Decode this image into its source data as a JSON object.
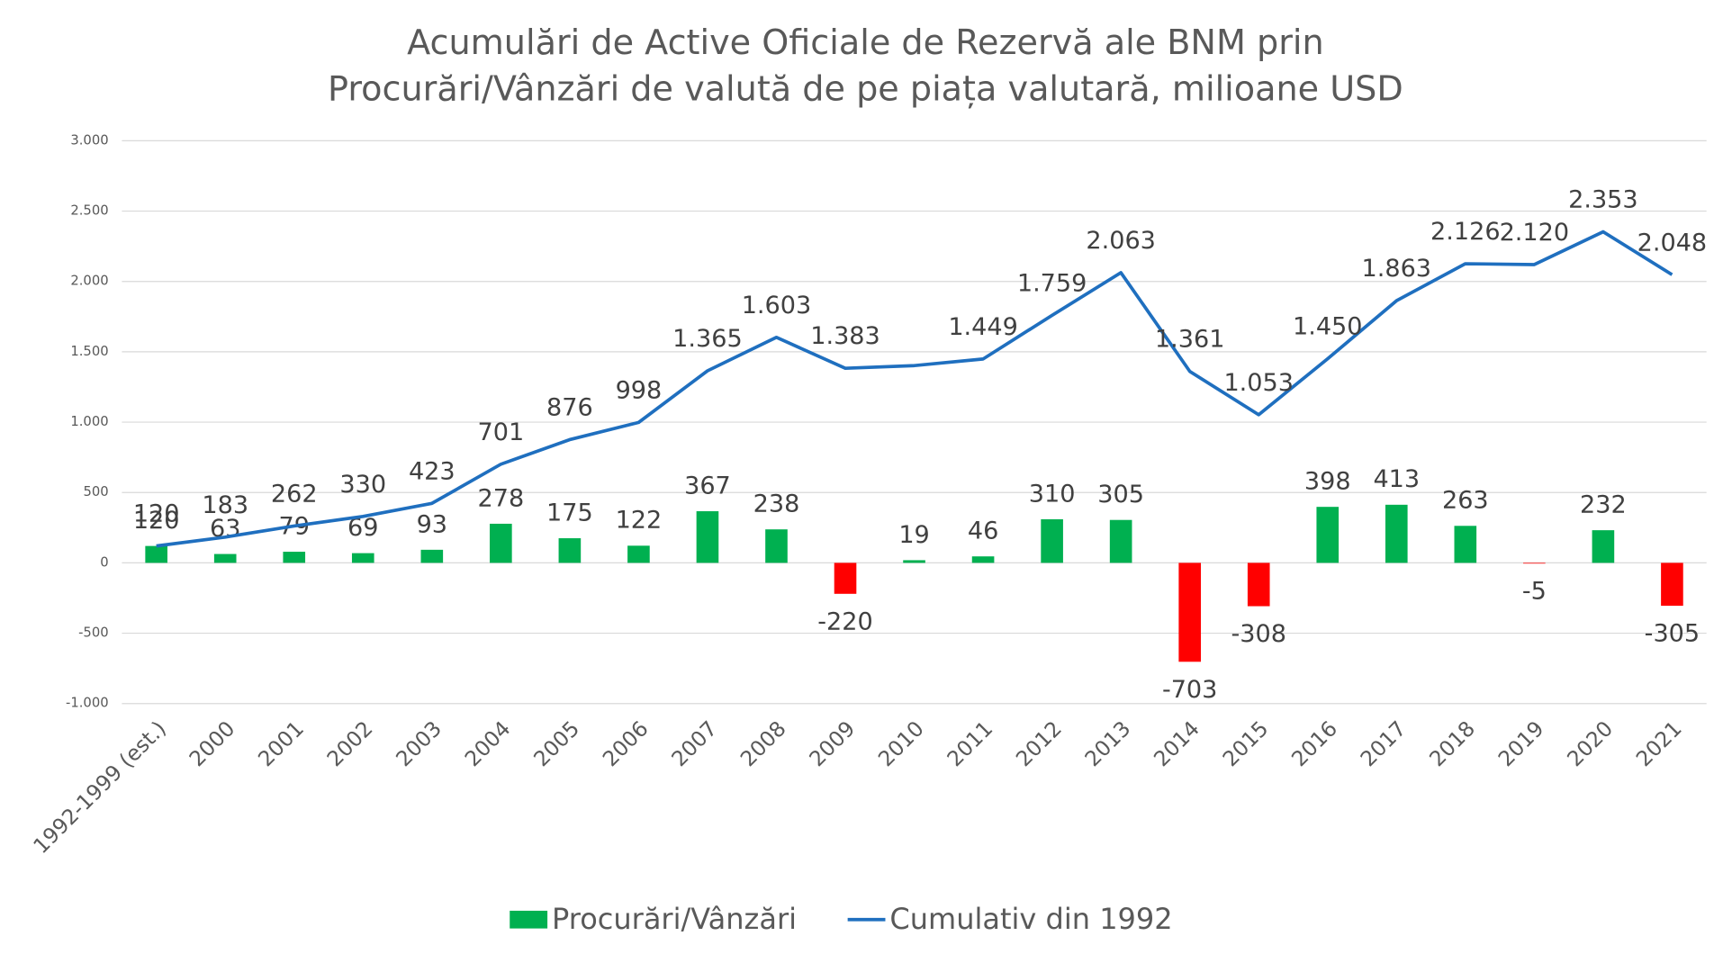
{
  "chart_data": {
    "type": "bar-line",
    "title": [
      "Acumulări de Active Oficiale de Rezervă  ale BNM prin",
      "Procurări/Vânzări de valută de pe piața valutară, milioane USD"
    ],
    "categories": [
      "1992-1999 (est.)",
      "2000",
      "2001",
      "2002",
      "2003",
      "2004",
      "2005",
      "2006",
      "2007",
      "2008",
      "2009",
      "2010",
      "2011",
      "2012",
      "2013",
      "2014",
      "2015",
      "2016",
      "2017",
      "2018",
      "2019",
      "2020",
      "2021"
    ],
    "series": [
      {
        "name": "Procurări/Vânzări",
        "type": "bar",
        "color": "#00b050",
        "negative_color": "#ff0000",
        "values": [
          120,
          63,
          79,
          69,
          93,
          278,
          175,
          122,
          367,
          238,
          -220,
          19,
          46,
          310,
          305,
          -703,
          -308,
          398,
          413,
          263,
          -5,
          232,
          -305
        ]
      },
      {
        "name": "Cumulativ din 1992",
        "type": "line",
        "color": "#1f6fbf",
        "values": [
          120,
          183,
          262,
          330,
          423,
          701,
          876,
          998,
          1365,
          1603,
          1383,
          1402,
          1449,
          1759,
          2063,
          1361,
          1053,
          1450,
          1863,
          2126,
          2120,
          2353,
          2048
        ],
        "value_labels": [
          "120",
          "183",
          "262",
          "330",
          "423",
          "701",
          "876",
          "998",
          "1.365",
          "1.603",
          "1.383",
          null,
          "1.449",
          "1.759",
          "2.063",
          "1.361",
          "1.053",
          "1.450",
          "1.863",
          "2.126",
          "2.120",
          "2.353",
          "2.048"
        ]
      }
    ],
    "ylim": [
      -1000,
      3000
    ],
    "yticks": [
      {
        "value": -1000,
        "label": "-1.000"
      },
      -500,
      0,
      500,
      {
        "value": 1000,
        "label": "1.000"
      },
      {
        "value": 1500,
        "label": "1.500"
      },
      {
        "value": 2000,
        "label": "2.000"
      },
      {
        "value": 2500,
        "label": "2.500"
      },
      {
        "value": 3000,
        "label": "3.000"
      }
    ],
    "grid": true,
    "legend": "bottom"
  }
}
